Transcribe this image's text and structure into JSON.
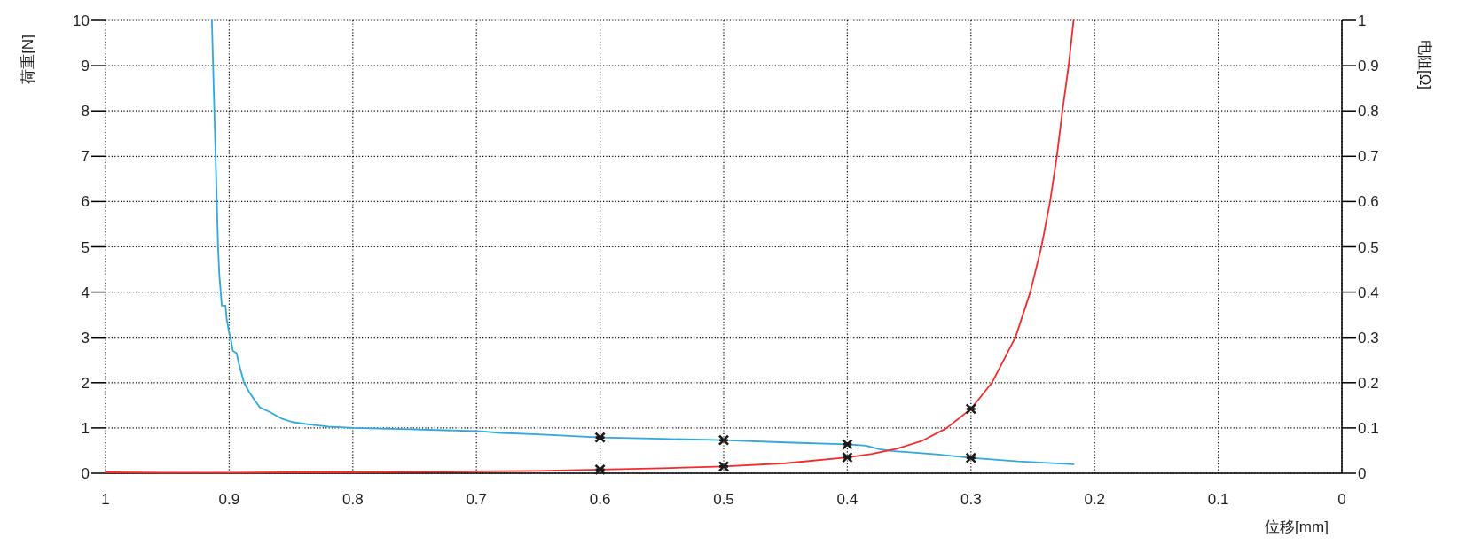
{
  "chart_data": {
    "type": "line",
    "xlabel": "位移[mm]",
    "ylabel": "荷重[N]",
    "y2label": "电阻[Ω]",
    "xlim": [
      1,
      0
    ],
    "xticks": [
      1,
      0.9,
      0.8,
      0.7,
      0.6,
      0.5,
      0.4,
      0.3,
      0.2,
      0.1,
      0
    ],
    "ylim": [
      0,
      10
    ],
    "yticks": [
      0,
      1,
      2,
      3,
      4,
      5,
      6,
      7,
      8,
      9,
      10
    ],
    "y2lim": [
      0,
      1
    ],
    "y2ticks": [
      0,
      0.1,
      0.2,
      0.3,
      0.4,
      0.5,
      0.6,
      0.7,
      0.8,
      0.9,
      1
    ],
    "grid": true,
    "line_style": "solid",
    "series": [
      {
        "color": "#2fa8dc",
        "x": [
          0.914,
          0.912,
          0.91,
          0.909,
          0.908,
          0.906,
          0.903,
          0.902,
          0.9,
          0.899,
          0.897,
          0.894,
          0.892,
          0.888,
          0.884,
          0.879,
          0.875,
          0.867,
          0.857,
          0.849,
          0.836,
          0.82,
          0.8,
          0.754,
          0.7,
          0.68,
          0.65,
          0.6,
          0.55,
          0.5,
          0.45,
          0.4,
          0.385,
          0.374,
          0.364,
          0.328,
          0.3,
          0.262,
          0.217
        ],
        "values": [
          10,
          8,
          6,
          5,
          4.4,
          3.7,
          3.7,
          3.4,
          3.1,
          3.0,
          2.7,
          2.65,
          2.4,
          2.0,
          1.8,
          1.6,
          1.45,
          1.35,
          1.2,
          1.13,
          1.08,
          1.03,
          1.0,
          0.97,
          0.93,
          0.89,
          0.86,
          0.79,
          0.76,
          0.73,
          0.68,
          0.64,
          0.61,
          0.53,
          0.49,
          0.42,
          0.34,
          0.26,
          0.2
        ]
      },
      {
        "color": "#f22b2b",
        "axis": "y2",
        "x": [
          1,
          0.95,
          0.9,
          0.85,
          0.8,
          0.75,
          0.7,
          0.65,
          0.6,
          0.55,
          0.5,
          0.45,
          0.4,
          0.38,
          0.36,
          0.34,
          0.32,
          0.3,
          0.283,
          0.264,
          0.252,
          0.243,
          0.236,
          0.2305,
          0.226,
          0.221,
          0.217
        ],
        "values": [
          0.002,
          0.001,
          0.001,
          0.002,
          0.002,
          0.003,
          0.004,
          0.005,
          0.008,
          0.011,
          0.015,
          0.022,
          0.035,
          0.043,
          0.054,
          0.071,
          0.099,
          0.142,
          0.2,
          0.3,
          0.4,
          0.5,
          0.6,
          0.7,
          0.8,
          0.9,
          1.0
        ]
      },
      {
        "type": "scatter",
        "marker": "cross",
        "color": "#1a1a1a",
        "x": [
          0.6,
          0.5,
          0.4,
          0.3
        ],
        "values": [
          0.79,
          0.73,
          0.64,
          0.34
        ]
      },
      {
        "type": "scatter",
        "marker": "cross",
        "color": "#1a1a1a",
        "axis": "y2",
        "x": [
          0.6,
          0.5,
          0.4,
          0.3
        ],
        "values": [
          0.008,
          0.015,
          0.035,
          0.142
        ]
      }
    ]
  }
}
